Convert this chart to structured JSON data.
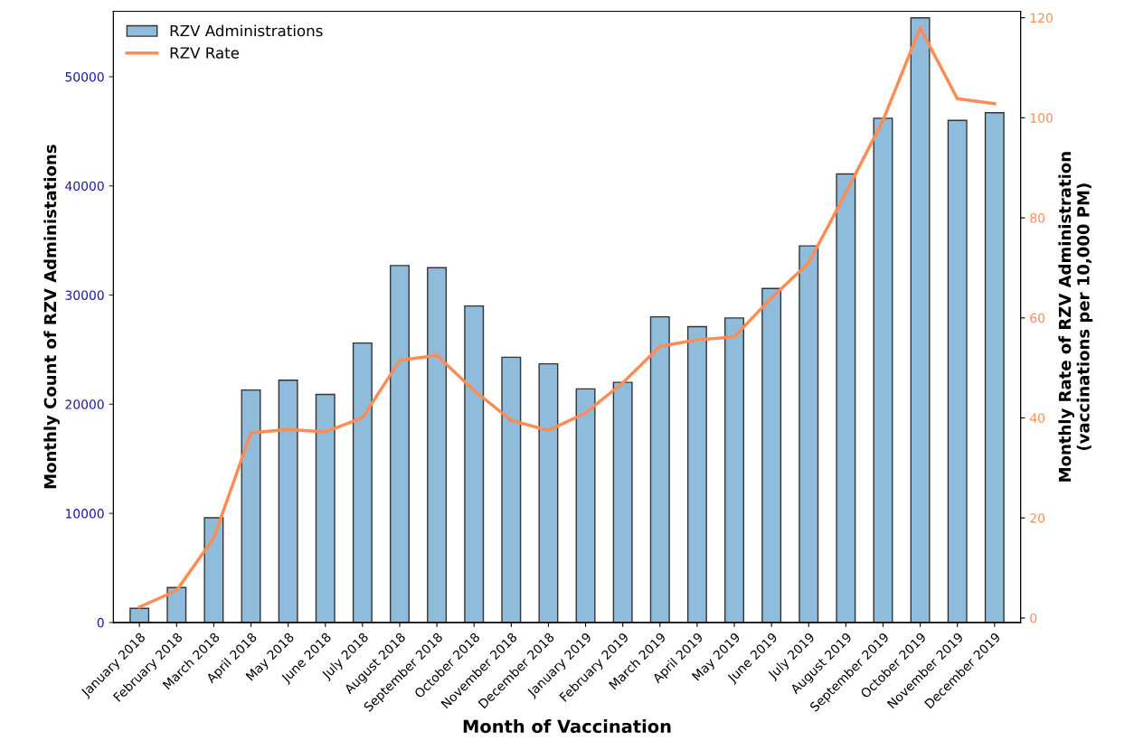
{
  "chart_data": {
    "type": "bar",
    "xlabel": "Month of Vaccination",
    "ylabel": "Monthly Count of RZV Administations",
    "y2label": "Monthly Rate of RZV Administration\n(vaccinations per 10,000 PM)",
    "categories": [
      "January 2018",
      "February 2018",
      "March 2018",
      "April 2018",
      "May 2018",
      "June 2018",
      "July 2018",
      "August 2018",
      "September 2018",
      "October 2018",
      "November 2018",
      "December 2018",
      "January 2019",
      "February 2019",
      "March 2019",
      "April 2019",
      "May 2019",
      "June 2019",
      "July 2019",
      "August 2019",
      "September 2019",
      "October 2019",
      "November 2019",
      "December 2019"
    ],
    "series": [
      {
        "name": "RZV Administrations",
        "color": "#8fbcdb",
        "values": [
          1300,
          3200,
          9600,
          21300,
          22200,
          20900,
          25600,
          32700,
          32500,
          29000,
          24300,
          23700,
          21400,
          22000,
          28000,
          27100,
          27900,
          30600,
          34500,
          41100,
          46200,
          55400,
          46000,
          46700
        ]
      },
      {
        "name": "RZV Rate",
        "type": "line",
        "axis": "y2",
        "color": "#ff8c55",
        "values": [
          2.2,
          5.5,
          16,
          37,
          37.7,
          37.2,
          40,
          51.5,
          52.5,
          45.5,
          39.5,
          37.5,
          41,
          47,
          54.3,
          55.6,
          56.2,
          64,
          71,
          85,
          99.5,
          118,
          103.8,
          102.8
        ]
      }
    ],
    "ylim": [
      0,
      56000
    ],
    "yticks": [
      0,
      10000,
      20000,
      30000,
      40000,
      50000
    ],
    "y2lim": [
      -0.9,
      121.3
    ],
    "y2ticks": [
      0,
      20,
      40,
      60,
      80,
      100,
      120
    ],
    "grid": false,
    "legend": "top left",
    "marker": "none",
    "line_style": "solid"
  }
}
